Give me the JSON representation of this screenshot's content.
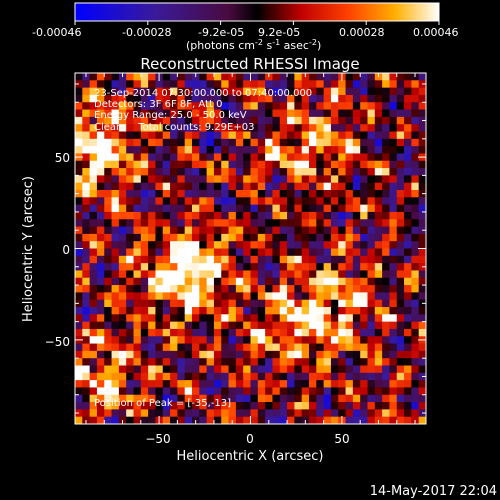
{
  "colorbar": {
    "tick_labels": [
      "-0.00046",
      "-0.00028",
      "-9.2e-05",
      "9.2e-05",
      "0.00028",
      "0.00046"
    ],
    "unit_label": "(photons cm",
    "unit_sup1": "-2",
    "unit_mid": " s",
    "unit_sup2": "-1",
    "unit_mid2": " asec",
    "unit_sup3": "-2",
    "unit_end": ")",
    "range": [
      -0.00046,
      0.00046
    ],
    "colormap": "blue-purple-red-yellow-white"
  },
  "chart_data": {
    "type": "heatmap",
    "title": "Reconstructed RHESSI Image",
    "xlabel": "Heliocentric X (arcsec)",
    "ylabel": "Heliocentric Y (arcsec)",
    "xlim": [
      -96,
      96
    ],
    "ylim": [
      -96,
      96
    ],
    "x_ticks": [
      -50,
      0,
      50
    ],
    "y_ticks": [
      50,
      0,
      -50
    ],
    "x_tick_labels": [
      "−50",
      "0",
      "50"
    ],
    "y_tick_labels": [
      "50",
      "0",
      "−50"
    ],
    "grid": false,
    "annotations": {
      "time": "23-Sep-2014 07:30:00.000 to 07:40:00.000",
      "detectors": "Detectors: 3F 6F 8F, Att 0",
      "energy": "Energy Range: 25.0 - 50.0 keV",
      "clean": "Clean     Total counts: 9.29E+03",
      "peak": "Position of Peak = [-35,-13]"
    },
    "bright_regions": [
      {
        "x": -35,
        "y": -13,
        "level": 1.0
      },
      {
        "x": -85,
        "y": 55,
        "level": 0.85
      },
      {
        "x": 30,
        "y": 55,
        "level": 0.6
      },
      {
        "x": 45,
        "y": -30,
        "level": 0.7
      },
      {
        "x": -80,
        "y": -70,
        "level": 0.6
      },
      {
        "x": 20,
        "y": -45,
        "level": 0.5
      }
    ]
  },
  "footer": {
    "timestamp": "14-May-2017 22:04"
  }
}
